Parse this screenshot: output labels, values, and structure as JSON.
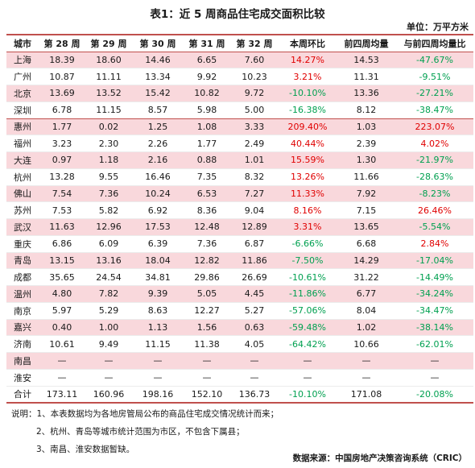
{
  "title": "表1：近 5 周商品住宅成交面积比较",
  "unit": "单位：万平方米",
  "table": {
    "headers": [
      "城市",
      "第 28 周",
      "第 29 周",
      "第 30 周",
      "第 31 周",
      "第 32 周",
      "本周环比",
      "前四周均量",
      "与前四周均量比"
    ],
    "rows": [
      {
        "city": "上海",
        "w28": "18.39",
        "w29": "18.60",
        "w30": "14.46",
        "w31": "6.65",
        "w32": "7.60",
        "wow": "14.27%",
        "avg4": "14.53",
        "vsavg": "-47.67%",
        "hl": true
      },
      {
        "city": "广州",
        "w28": "10.87",
        "w29": "11.11",
        "w30": "13.34",
        "w31": "9.92",
        "w32": "10.23",
        "wow": "3.21%",
        "avg4": "11.31",
        "vsavg": "-9.51%",
        "hl": false
      },
      {
        "city": "北京",
        "w28": "13.69",
        "w29": "13.52",
        "w30": "15.42",
        "w31": "10.82",
        "w32": "9.72",
        "wow": "-10.10%",
        "avg4": "13.36",
        "vsavg": "-27.21%",
        "hl": true
      },
      {
        "city": "深圳",
        "w28": "6.78",
        "w29": "11.15",
        "w30": "8.57",
        "w31": "5.98",
        "w32": "5.00",
        "wow": "-16.38%",
        "avg4": "8.12",
        "vsavg": "-38.47%",
        "hl": false,
        "sep": true
      },
      {
        "city": "惠州",
        "w28": "1.77",
        "w29": "0.02",
        "w30": "1.25",
        "w31": "1.08",
        "w32": "3.33",
        "wow": "209.40%",
        "avg4": "1.03",
        "vsavg": "223.07%",
        "hl": true
      },
      {
        "city": "福州",
        "w28": "3.23",
        "w29": "2.30",
        "w30": "2.26",
        "w31": "1.77",
        "w32": "2.49",
        "wow": "40.44%",
        "avg4": "2.39",
        "vsavg": "4.02%",
        "hl": false
      },
      {
        "city": "大连",
        "w28": "0.97",
        "w29": "1.18",
        "w30": "2.16",
        "w31": "0.88",
        "w32": "1.01",
        "wow": "15.59%",
        "avg4": "1.30",
        "vsavg": "-21.97%",
        "hl": true
      },
      {
        "city": "杭州",
        "w28": "13.28",
        "w29": "9.55",
        "w30": "16.46",
        "w31": "7.35",
        "w32": "8.32",
        "wow": "13.26%",
        "avg4": "11.66",
        "vsavg": "-28.63%",
        "hl": false
      },
      {
        "city": "佛山",
        "w28": "7.54",
        "w29": "7.36",
        "w30": "10.24",
        "w31": "6.53",
        "w32": "7.27",
        "wow": "11.33%",
        "avg4": "7.92",
        "vsavg": "-8.23%",
        "hl": true
      },
      {
        "city": "苏州",
        "w28": "7.53",
        "w29": "5.82",
        "w30": "6.92",
        "w31": "8.36",
        "w32": "9.04",
        "wow": "8.16%",
        "avg4": "7.15",
        "vsavg": "26.46%",
        "hl": false
      },
      {
        "city": "武汉",
        "w28": "11.63",
        "w29": "12.96",
        "w30": "17.53",
        "w31": "12.48",
        "w32": "12.89",
        "wow": "3.31%",
        "avg4": "13.65",
        "vsavg": "-5.54%",
        "hl": true
      },
      {
        "city": "重庆",
        "w28": "6.86",
        "w29": "6.09",
        "w30": "6.39",
        "w31": "7.36",
        "w32": "6.87",
        "wow": "-6.66%",
        "avg4": "6.68",
        "vsavg": "2.84%",
        "hl": false
      },
      {
        "city": "青岛",
        "w28": "13.15",
        "w29": "13.16",
        "w30": "18.04",
        "w31": "12.82",
        "w32": "11.86",
        "wow": "-7.50%",
        "avg4": "14.29",
        "vsavg": "-17.04%",
        "hl": true
      },
      {
        "city": "成都",
        "w28": "35.65",
        "w29": "24.54",
        "w30": "34.81",
        "w31": "29.86",
        "w32": "26.69",
        "wow": "-10.61%",
        "avg4": "31.22",
        "vsavg": "-14.49%",
        "hl": false
      },
      {
        "city": "温州",
        "w28": "4.80",
        "w29": "7.82",
        "w30": "9.39",
        "w31": "5.05",
        "w32": "4.45",
        "wow": "-11.86%",
        "avg4": "6.77",
        "vsavg": "-34.24%",
        "hl": true
      },
      {
        "city": "南京",
        "w28": "5.97",
        "w29": "5.29",
        "w30": "8.63",
        "w31": "12.27",
        "w32": "5.27",
        "wow": "-57.06%",
        "avg4": "8.04",
        "vsavg": "-34.47%",
        "hl": false
      },
      {
        "city": "嘉兴",
        "w28": "0.40",
        "w29": "1.00",
        "w30": "1.13",
        "w31": "1.56",
        "w32": "0.63",
        "wow": "-59.48%",
        "avg4": "1.02",
        "vsavg": "-38.14%",
        "hl": true
      },
      {
        "city": "济南",
        "w28": "10.61",
        "w29": "9.49",
        "w30": "11.15",
        "w31": "11.38",
        "w32": "4.05",
        "wow": "-64.42%",
        "avg4": "10.66",
        "vsavg": "-62.01%",
        "hl": false
      },
      {
        "city": "南昌",
        "w28": "—",
        "w29": "—",
        "w30": "—",
        "w31": "—",
        "w32": "—",
        "wow": "—",
        "avg4": "—",
        "vsavg": "—",
        "hl": true
      },
      {
        "city": "淮安",
        "w28": "—",
        "w29": "—",
        "w30": "—",
        "w31": "—",
        "w32": "—",
        "wow": "—",
        "avg4": "—",
        "vsavg": "—",
        "hl": false
      }
    ],
    "total": {
      "city": "合计",
      "w28": "173.11",
      "w29": "160.96",
      "w30": "198.16",
      "w31": "152.10",
      "w32": "136.73",
      "wow": "-10.10%",
      "avg4": "171.08",
      "vsavg": "-20.08%"
    }
  },
  "notes": {
    "label": "说明：",
    "items": [
      "1、本表数据均为各地房管局公布的商品住宅成交情况统计而来；",
      "2、杭州、青岛等城市统计范围为市区，不包含下属县；",
      "3、南昌、淮安数据暂缺。"
    ]
  },
  "source": "数据来源：中国房地产决策咨询系统（CRIC）",
  "colors": {
    "positive": "#e00000",
    "negative": "#00a050",
    "highlight_row": "#f9d8dc",
    "rule": "#c0504d"
  }
}
